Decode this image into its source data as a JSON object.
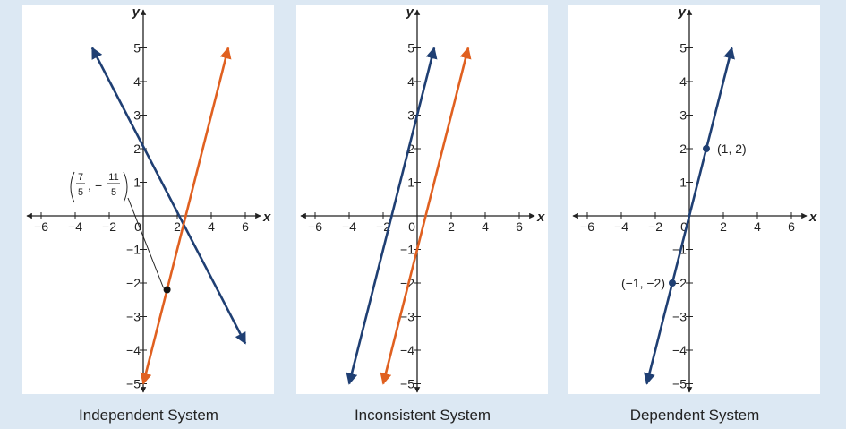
{
  "figures": [
    {
      "caption": "Independent System"
    },
    {
      "caption": "Inconsistent System"
    },
    {
      "caption": "Dependent System"
    }
  ],
  "chart_data": [
    {
      "type": "line",
      "title": "Independent System",
      "xlabel": "x",
      "ylabel": "y",
      "xlim": [
        -7,
        7
      ],
      "ylim": [
        -5.5,
        5.5
      ],
      "x_ticks": [
        -6,
        -4,
        -2,
        0,
        2,
        4,
        6
      ],
      "y_ticks": [
        -5,
        -4,
        -3,
        -2,
        -1,
        1,
        2,
        3,
        4,
        5
      ],
      "grid": false,
      "series": [
        {
          "color": "#1f3f73",
          "points": [
            [
              -3,
              5
            ],
            [
              6,
              -3.8
            ]
          ]
        },
        {
          "color": "#e06020",
          "points": [
            [
              5,
              5
            ],
            [
              0,
              -5
            ]
          ]
        }
      ],
      "points": [
        {
          "x": 1.4,
          "y": -2.2,
          "fraction_label": {
            "x_num": "7",
            "x_den": "5",
            "y_num": "11",
            "y_den": "5",
            "y_sign": "−"
          }
        }
      ]
    },
    {
      "type": "line",
      "title": "Inconsistent System",
      "xlabel": "x",
      "ylabel": "y",
      "xlim": [
        -7,
        7
      ],
      "ylim": [
        -5.5,
        5.5
      ],
      "x_ticks": [
        -6,
        -4,
        -2,
        0,
        2,
        4,
        6
      ],
      "y_ticks": [
        -5,
        -4,
        -3,
        -2,
        -1,
        1,
        2,
        3,
        4,
        5
      ],
      "grid": false,
      "series": [
        {
          "color": "#1f3f73",
          "points": [
            [
              -4,
              -5
            ],
            [
              1,
              5
            ]
          ]
        },
        {
          "color": "#e06020",
          "points": [
            [
              -2,
              -5
            ],
            [
              3,
              5
            ]
          ]
        }
      ],
      "points": []
    },
    {
      "type": "line",
      "title": "Dependent System",
      "xlabel": "x",
      "ylabel": "y",
      "xlim": [
        -7,
        7
      ],
      "ylim": [
        -5.5,
        5.5
      ],
      "x_ticks": [
        -6,
        -4,
        -2,
        0,
        2,
        4,
        6
      ],
      "y_ticks": [
        -5,
        -4,
        -3,
        -2,
        -1,
        1,
        2,
        3,
        4,
        5
      ],
      "grid": false,
      "series": [
        {
          "color": "#1f3f73",
          "points": [
            [
              -2.5,
              -5
            ],
            [
              2.5,
              5
            ]
          ]
        }
      ],
      "points": [
        {
          "x": 1,
          "y": 2,
          "label": "(1, 2)",
          "label_side": "right"
        },
        {
          "x": -1,
          "y": -2,
          "label": "(−1, −2)",
          "label_side": "left"
        }
      ]
    }
  ]
}
